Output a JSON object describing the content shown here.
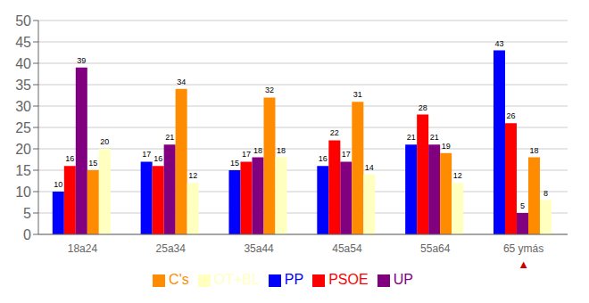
{
  "chart_data": {
    "type": "bar",
    "categories": [
      "18a24",
      "25a34",
      "35a44",
      "45a54",
      "55a64",
      "65 ymás"
    ],
    "series": [
      {
        "name": "PP",
        "color": "#0000FF",
        "values": [
          10,
          17,
          15,
          16,
          21,
          43
        ]
      },
      {
        "name": "PSOE",
        "color": "#FF0000",
        "values": [
          16,
          16,
          17,
          22,
          28,
          26
        ]
      },
      {
        "name": "UP",
        "color": "#800080",
        "values": [
          39,
          21,
          18,
          17,
          21,
          5
        ]
      },
      {
        "name": "C's",
        "color": "#FF8C00",
        "values": [
          15,
          34,
          32,
          31,
          19,
          18
        ]
      },
      {
        "name": "OT+BL",
        "color": "#FFFFC0",
        "values": [
          20,
          12,
          18,
          14,
          12,
          8
        ]
      }
    ],
    "ylim": [
      0,
      50
    ],
    "yticks": [
      0,
      5,
      10,
      15,
      20,
      25,
      30,
      35,
      40,
      45,
      50
    ],
    "grid": true,
    "legend": "bottom",
    "data_labels": true,
    "annotations": [
      {
        "text": "▲",
        "category": "65 ymás",
        "color": "#CC0000"
      }
    ]
  }
}
